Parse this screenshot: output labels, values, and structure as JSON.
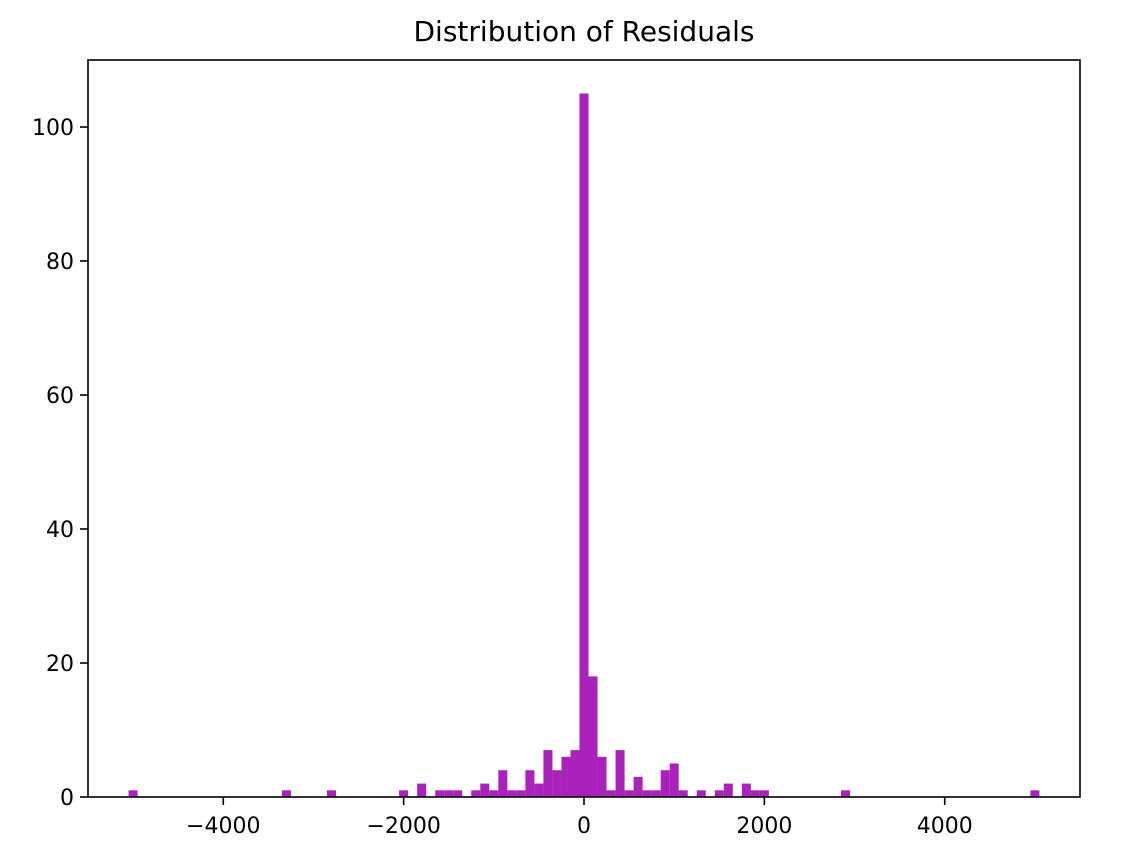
{
  "chart_data": {
    "type": "bar",
    "title": "Distribution of Residuals",
    "xlabel": "",
    "ylabel": "",
    "xlim": [
      -5500,
      5500
    ],
    "ylim": [
      0,
      110
    ],
    "grid": false,
    "bar_color": "#aa22bb",
    "bin_width": 100,
    "x_ticks": [
      {
        "value": -4000,
        "label": "−4000"
      },
      {
        "value": -2000,
        "label": "−2000"
      },
      {
        "value": 0,
        "label": "0"
      },
      {
        "value": 2000,
        "label": "2000"
      },
      {
        "value": 4000,
        "label": "4000"
      }
    ],
    "y_ticks": [
      {
        "value": 0,
        "label": "0"
      },
      {
        "value": 20,
        "label": "20"
      },
      {
        "value": 40,
        "label": "40"
      },
      {
        "value": 60,
        "label": "60"
      },
      {
        "value": 80,
        "label": "80"
      },
      {
        "value": 100,
        "label": "100"
      }
    ],
    "bins": [
      {
        "x": -5000,
        "count": 1
      },
      {
        "x": -3300,
        "count": 1
      },
      {
        "x": -2800,
        "count": 1
      },
      {
        "x": -2000,
        "count": 1
      },
      {
        "x": -1800,
        "count": 2
      },
      {
        "x": -1600,
        "count": 1
      },
      {
        "x": -1500,
        "count": 1
      },
      {
        "x": -1400,
        "count": 1
      },
      {
        "x": -1200,
        "count": 1
      },
      {
        "x": -1100,
        "count": 2
      },
      {
        "x": -1000,
        "count": 1
      },
      {
        "x": -900,
        "count": 4
      },
      {
        "x": -800,
        "count": 1
      },
      {
        "x": -700,
        "count": 1
      },
      {
        "x": -600,
        "count": 4
      },
      {
        "x": -500,
        "count": 2
      },
      {
        "x": -400,
        "count": 7
      },
      {
        "x": -300,
        "count": 4
      },
      {
        "x": -200,
        "count": 6
      },
      {
        "x": -100,
        "count": 7
      },
      {
        "x": 0,
        "count": 105
      },
      {
        "x": 100,
        "count": 18
      },
      {
        "x": 200,
        "count": 6
      },
      {
        "x": 300,
        "count": 1
      },
      {
        "x": 400,
        "count": 7
      },
      {
        "x": 500,
        "count": 1
      },
      {
        "x": 600,
        "count": 3
      },
      {
        "x": 700,
        "count": 1
      },
      {
        "x": 800,
        "count": 1
      },
      {
        "x": 900,
        "count": 4
      },
      {
        "x": 1000,
        "count": 5
      },
      {
        "x": 1100,
        "count": 1
      },
      {
        "x": 1300,
        "count": 1
      },
      {
        "x": 1500,
        "count": 1
      },
      {
        "x": 1600,
        "count": 2
      },
      {
        "x": 1800,
        "count": 2
      },
      {
        "x": 1900,
        "count": 1
      },
      {
        "x": 2000,
        "count": 1
      },
      {
        "x": 2900,
        "count": 1
      },
      {
        "x": 5000,
        "count": 1
      }
    ]
  }
}
